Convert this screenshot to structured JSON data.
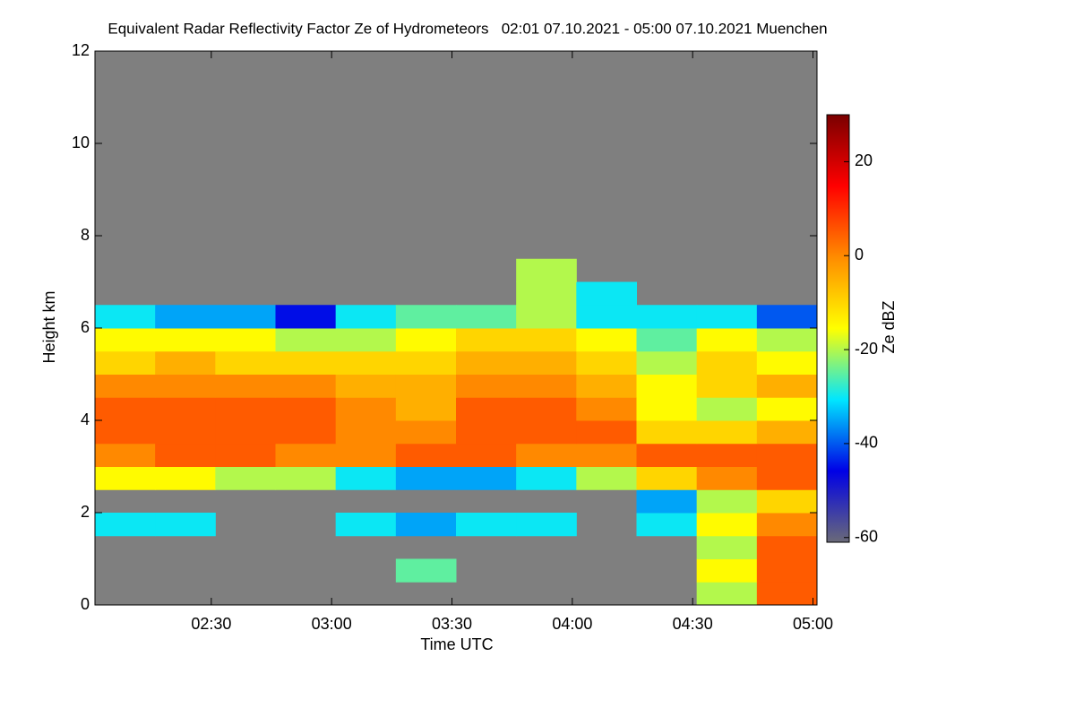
{
  "chart_data": {
    "type": "heatmap",
    "title": "Equivalent Radar Reflectivity Factor Ze of Hydrometeors   02:01 07.10.2021 - 05:00 07.10.2021 Muenchen",
    "xlabel": "Time UTC",
    "ylabel": "Height km",
    "colorbar_label": "Ze dBZ",
    "x": [
      128.5,
      143.5,
      158.5,
      173.5,
      188.5,
      203.5,
      218.5,
      233.5,
      248.5,
      263.5,
      278.5,
      293.5
    ],
    "y": [
      0.25,
      0.75,
      1.25,
      1.75,
      2.25,
      2.75,
      3.25,
      3.75,
      4.25,
      4.75,
      5.25,
      5.75,
      6.25,
      6.75,
      7.25
    ],
    "values": [
      [
        null,
        null,
        null,
        null,
        null,
        null,
        null,
        null,
        null,
        null,
        -20,
        5
      ],
      [
        null,
        null,
        null,
        null,
        null,
        -25,
        null,
        null,
        null,
        null,
        -15,
        5
      ],
      [
        null,
        null,
        null,
        null,
        null,
        null,
        null,
        null,
        null,
        null,
        -20,
        5
      ],
      [
        -30,
        -30,
        null,
        null,
        -30,
        -35,
        -30,
        -30,
        null,
        -30,
        -15,
        0
      ],
      [
        null,
        null,
        null,
        null,
        null,
        null,
        null,
        null,
        null,
        -35,
        -20,
        -10
      ],
      [
        -15,
        -15,
        -20,
        -20,
        -30,
        -35,
        -35,
        -30,
        -20,
        -10,
        0,
        5
      ],
      [
        0,
        5,
        5,
        0,
        0,
        5,
        5,
        0,
        0,
        5,
        5,
        5
      ],
      [
        5,
        5,
        5,
        5,
        0,
        0,
        5,
        5,
        5,
        -10,
        -10,
        -5
      ],
      [
        5,
        5,
        5,
        5,
        0,
        -5,
        5,
        5,
        0,
        -15,
        -20,
        -15
      ],
      [
        0,
        0,
        0,
        0,
        -5,
        -5,
        0,
        0,
        -5,
        -15,
        -10,
        -5
      ],
      [
        -10,
        -5,
        -10,
        -10,
        -10,
        -10,
        -5,
        -5,
        -10,
        -20,
        -10,
        -15
      ],
      [
        -15,
        -15,
        -15,
        -20,
        -20,
        -15,
        -10,
        -10,
        -15,
        -25,
        -15,
        -20
      ],
      [
        -30,
        -35,
        -35,
        -45,
        -30,
        -25,
        -25,
        -20,
        -30,
        -30,
        -30,
        -40
      ],
      [
        null,
        null,
        null,
        null,
        null,
        null,
        null,
        -20,
        -30,
        null,
        null,
        null
      ],
      [
        null,
        null,
        null,
        null,
        null,
        null,
        null,
        -20,
        null,
        null,
        null,
        null
      ]
    ],
    "xlim": [
      121,
      301
    ],
    "xticks": [
      {
        "value": 150,
        "label": "02:30"
      },
      {
        "value": 180,
        "label": "03:00"
      },
      {
        "value": 210,
        "label": "03:30"
      },
      {
        "value": 240,
        "label": "04:00"
      },
      {
        "value": 270,
        "label": "04:30"
      },
      {
        "value": 300,
        "label": "05:00"
      }
    ],
    "ylim": [
      0,
      12
    ],
    "yticks": [
      0,
      2,
      4,
      6,
      8,
      10,
      12
    ],
    "zlim": [
      -61,
      30
    ],
    "zticks": [
      -60,
      -40,
      -20,
      0,
      20
    ],
    "colors": [
      "#6a6a78",
      "#0000e6",
      "#00e6ff",
      "#ffff00",
      "#ff8c00",
      "#ff0000",
      "#7a0000"
    ],
    "background": "#7f7f7f"
  }
}
